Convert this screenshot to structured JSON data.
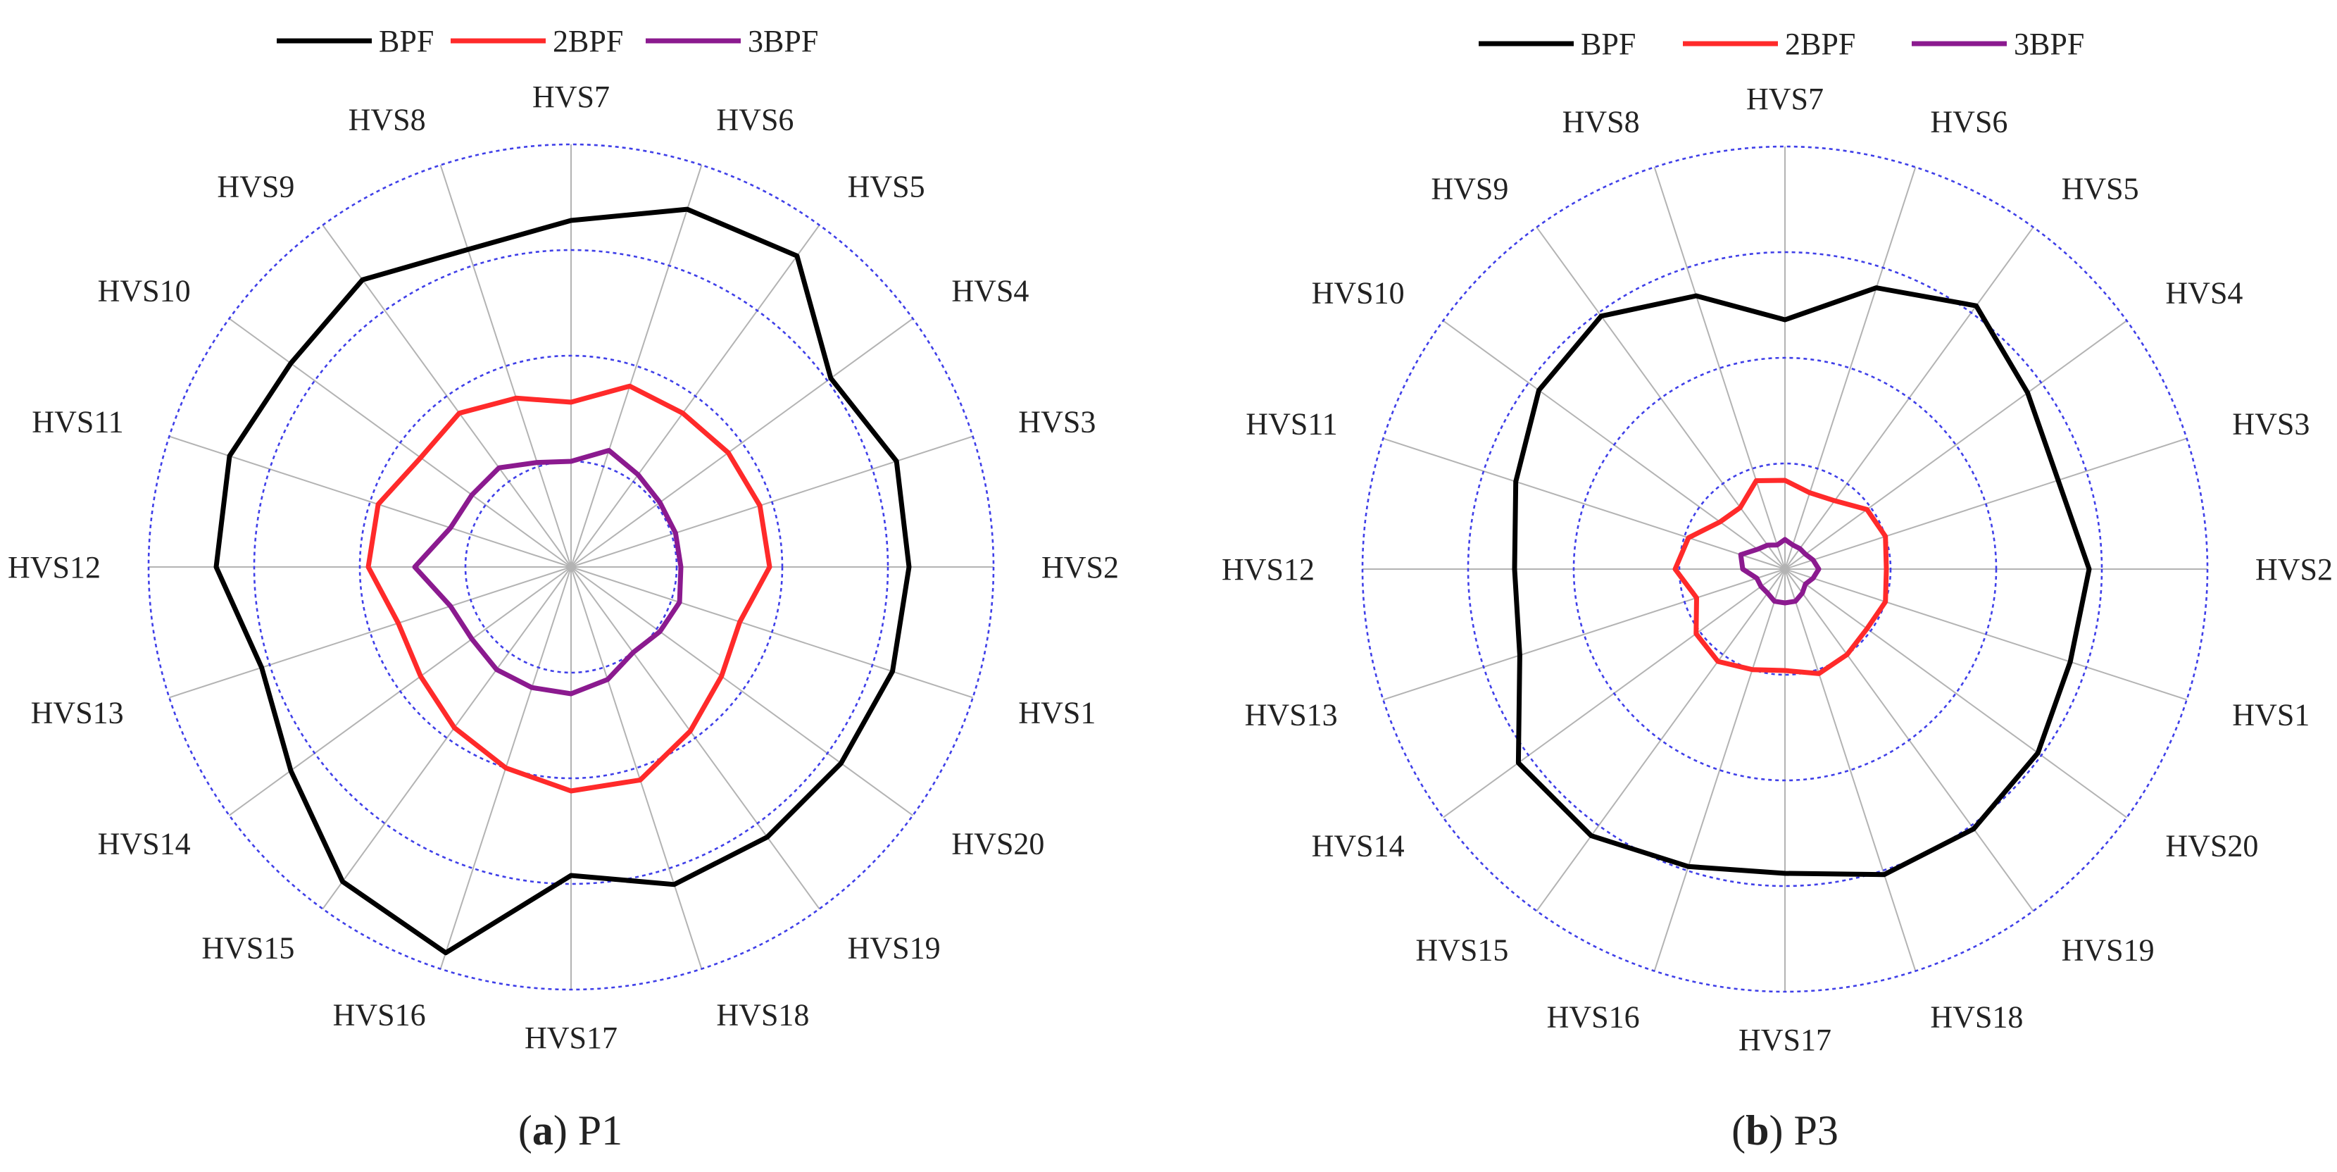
{
  "colors": {
    "BPF": "#000000",
    "2BPF": "#ff2a2a",
    "3BPF": "#8b1a8f",
    "grid": "#3f3fe8",
    "spoke": "#b3b3b3"
  },
  "chart_data": [
    {
      "type": "radar",
      "panel_letter": "a",
      "panel_name": "P1",
      "axis_labels": [
        "HVS1",
        "HVS2",
        "HVS3",
        "HVS4",
        "HVS5",
        "HVS6",
        "HVS7",
        "HVS8",
        "HVS9",
        "HVS10",
        "HVS11",
        "HVS12",
        "HVS13",
        "HVS14",
        "HVS15",
        "HVS16",
        "HVS17",
        "HVS18",
        "HVS19",
        "HVS20"
      ],
      "legend": [
        "BPF",
        "2BPF",
        "3BPF"
      ],
      "legend_placement": "top",
      "rings": 4,
      "range": [
        0,
        1
      ],
      "series": [
        {
          "name": "BPF",
          "values": [
            0.8,
            0.8,
            0.81,
            0.76,
            0.91,
            0.89,
            0.82,
            0.79,
            0.84,
            0.82,
            0.85,
            0.84,
            0.77,
            0.82,
            0.92,
            0.96,
            0.73,
            0.79,
            0.79,
            0.79
          ]
        },
        {
          "name": "2BPF",
          "values": [
            0.42,
            0.47,
            0.47,
            0.46,
            0.45,
            0.45,
            0.39,
            0.42,
            0.45,
            0.44,
            0.48,
            0.48,
            0.43,
            0.44,
            0.47,
            0.5,
            0.53,
            0.53,
            0.48,
            0.44
          ]
        },
        {
          "name": "3BPF",
          "values": [
            0.27,
            0.26,
            0.26,
            0.26,
            0.27,
            0.29,
            0.25,
            0.26,
            0.29,
            0.29,
            0.3,
            0.37,
            0.3,
            0.29,
            0.3,
            0.3,
            0.3,
            0.28,
            0.25,
            0.26
          ]
        }
      ]
    },
    {
      "type": "radar",
      "panel_letter": "b",
      "panel_name": "P3",
      "axis_labels": [
        "HVS1",
        "HVS2",
        "HVS3",
        "HVS4",
        "HVS5",
        "HVS6",
        "HVS7",
        "HVS8",
        "HVS9",
        "HVS10",
        "HVS11",
        "HVS12",
        "HVS13",
        "HVS14",
        "HVS15",
        "HVS16",
        "HVS17",
        "HVS18",
        "HVS19",
        "HVS20"
      ],
      "legend": [
        "BPF",
        "2BPF",
        "3BPF"
      ],
      "legend_placement": "top",
      "rings": 4,
      "range": [
        0,
        1
      ],
      "series": [
        {
          "name": "BPF",
          "values": [
            0.71,
            0.72,
            0.68,
            0.71,
            0.77,
            0.7,
            0.59,
            0.68,
            0.74,
            0.72,
            0.67,
            0.64,
            0.66,
            0.78,
            0.78,
            0.74,
            0.72,
            0.76,
            0.76,
            0.74
          ]
        },
        {
          "name": "2BPF",
          "values": [
            0.25,
            0.24,
            0.25,
            0.24,
            0.2,
            0.19,
            0.21,
            0.22,
            0.18,
            0.19,
            0.24,
            0.26,
            0.22,
            0.26,
            0.27,
            0.25,
            0.24,
            0.26,
            0.25,
            0.24
          ]
        },
        {
          "name": "3BPF",
          "values": [
            0.07,
            0.08,
            0.07,
            0.06,
            0.06,
            0.06,
            0.07,
            0.06,
            0.07,
            0.08,
            0.11,
            0.1,
            0.07,
            0.07,
            0.07,
            0.08,
            0.08,
            0.08,
            0.07,
            0.06
          ]
        }
      ]
    }
  ]
}
